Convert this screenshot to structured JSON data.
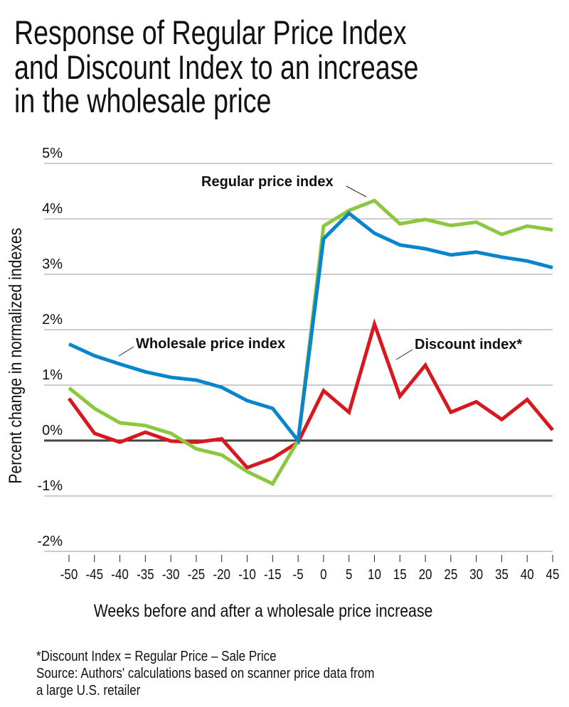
{
  "chart_data": {
    "type": "line",
    "title": [
      "Response of Regular Price Index",
      "and Discount Index to an increase",
      "in the wholesale price"
    ],
    "xlabel": "Weeks before and after a wholesale price increase",
    "ylabel": "Percent change in normalized indexes",
    "x_tick_labels": [
      "-50",
      "-45",
      "-40",
      "-35",
      "-30",
      "-25",
      "-20",
      "-10",
      "-15",
      "-5",
      "0",
      "5",
      "10",
      "15",
      "20",
      "25",
      "30",
      "35",
      "40",
      "45"
    ],
    "y_ticks": [
      5,
      4,
      3,
      2,
      1,
      0,
      -1,
      -2
    ],
    "y_tick_labels": [
      "5%",
      "4%",
      "3%",
      "2%",
      "1%",
      "0%",
      "-1%",
      "-2%"
    ],
    "ylim": [
      -2,
      5
    ],
    "grid": true,
    "series": [
      {
        "name": "Wholesale price index",
        "color": "#0a84cc",
        "values": [
          1.74,
          1.53,
          1.38,
          1.24,
          1.14,
          1.09,
          0.96,
          0.72,
          0.58,
          0,
          3.64,
          4.1,
          3.74,
          3.53,
          3.46,
          3.35,
          3.4,
          3.31,
          3.24,
          3.12
        ]
      },
      {
        "name": "Regular price index",
        "color": "#8dc63f",
        "values": [
          0.95,
          0.58,
          0.32,
          0.27,
          0.13,
          -0.15,
          -0.26,
          -0.56,
          -0.78,
          0,
          3.87,
          4.15,
          4.33,
          3.91,
          3.99,
          3.88,
          3.94,
          3.72,
          3.87,
          3.8
        ]
      },
      {
        "name": "Discount index*",
        "color": "#d7191f",
        "values": [
          0.76,
          0.13,
          -0.03,
          0.15,
          -0.01,
          -0.03,
          0.03,
          -0.49,
          -0.32,
          -0.03,
          0.9,
          0.51,
          2.1,
          0.8,
          1.36,
          0.51,
          0.7,
          0.38,
          0.74,
          0.19
        ]
      }
    ],
    "footnotes": [
      "*Discount Index = Regular Price – Sale Price",
      "Source: Authors' calculations based on scanner price data from",
      "a large U.S. retailer"
    ]
  }
}
